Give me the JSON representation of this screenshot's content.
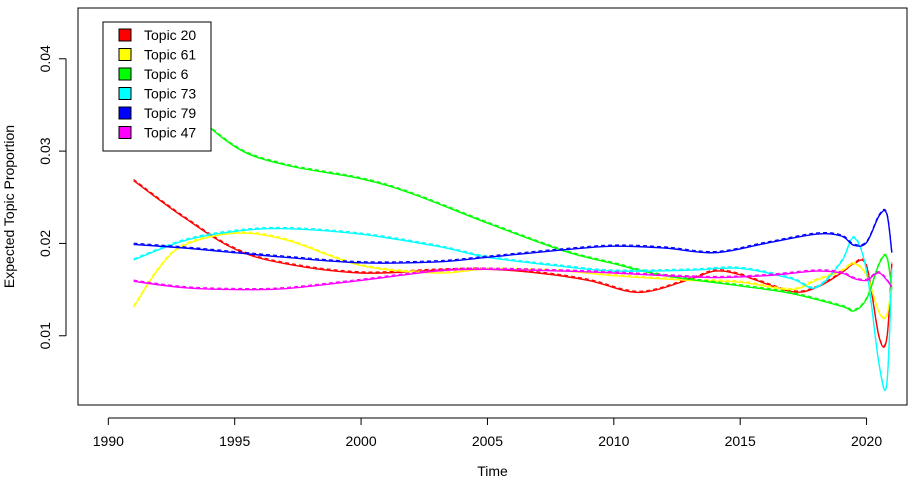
{
  "chart_data": {
    "type": "line",
    "xlabel": "Time",
    "ylabel": "Expected Topic Proportion",
    "xlim": [
      1988.8,
      2021.6
    ],
    "ylim": [
      0.0025,
      0.0455
    ],
    "xticks": [
      1990,
      1995,
      2000,
      2005,
      2010,
      2015,
      2020
    ],
    "xtick_labels": [
      "1990",
      "1995",
      "2000",
      "2005",
      "2010",
      "2015",
      "2020"
    ],
    "yticks": [
      0.01,
      0.02,
      0.03,
      0.04
    ],
    "ytick_labels": [
      "0.01",
      "0.02",
      "0.03",
      "0.04"
    ],
    "legend_position": "top-left",
    "series": [
      {
        "name": "Topic 20",
        "color": "#ff0000",
        "x": [
          1991,
          1993,
          1995,
          1997,
          2000,
          2003,
          2005,
          2007,
          2009,
          2011,
          2013,
          2014,
          2015,
          2017,
          2018,
          2019,
          2019.5,
          2020,
          2020.5,
          2020.8,
          2021
        ],
        "y": [
          0.0268,
          0.0228,
          0.0194,
          0.0178,
          0.0168,
          0.0171,
          0.0172,
          0.0168,
          0.016,
          0.0147,
          0.0161,
          0.017,
          0.0166,
          0.0148,
          0.0152,
          0.0168,
          0.0178,
          0.0175,
          0.0098,
          0.0097,
          0.0178
        ]
      },
      {
        "name": "Topic 61",
        "color": "#ffff00",
        "x": [
          1991,
          1992,
          1993,
          1995,
          1997,
          2000,
          2003,
          2005,
          2008,
          2010,
          2013,
          2015,
          2017,
          2018,
          2019,
          2019.5,
          2020,
          2020.5,
          2020.8,
          2021
        ],
        "y": [
          0.0131,
          0.0173,
          0.0198,
          0.0211,
          0.0204,
          0.0176,
          0.0168,
          0.0172,
          0.017,
          0.0165,
          0.016,
          0.0158,
          0.015,
          0.016,
          0.017,
          0.0178,
          0.0165,
          0.0125,
          0.0122,
          0.0158
        ]
      },
      {
        "name": "Topic 6",
        "color": "#00ff00",
        "x": [
          1991,
          1993,
          1995,
          1997,
          2000,
          2002,
          2005,
          2008,
          2010,
          2012,
          2015,
          2017,
          2019,
          2019.5,
          2020,
          2020.5,
          2020.8,
          2021
        ],
        "y": [
          0.0438,
          0.0355,
          0.0305,
          0.0285,
          0.027,
          0.0254,
          0.0222,
          0.0192,
          0.0178,
          0.0165,
          0.0154,
          0.0146,
          0.0132,
          0.0127,
          0.014,
          0.0178,
          0.0185,
          0.015
        ]
      },
      {
        "name": "Topic 73",
        "color": "#00ffff",
        "x": [
          1991,
          1993,
          1995,
          1997,
          2000,
          2003,
          2005,
          2008,
          2010,
          2013,
          2015,
          2017,
          2018,
          2019,
          2019.5,
          2020,
          2020.5,
          2020.8,
          2021
        ],
        "y": [
          0.0182,
          0.0203,
          0.0213,
          0.0216,
          0.021,
          0.0197,
          0.0185,
          0.0175,
          0.017,
          0.0171,
          0.0173,
          0.0162,
          0.0152,
          0.018,
          0.0206,
          0.017,
          0.0068,
          0.0048,
          0.0172
        ]
      },
      {
        "name": "Topic 79",
        "color": "#0000ff",
        "x": [
          1991,
          1993,
          1995,
          1997,
          2000,
          2003,
          2005,
          2008,
          2010,
          2012,
          2014,
          2016,
          2018,
          2019,
          2019.5,
          2020,
          2020.5,
          2020.8,
          2021
        ],
        "y": [
          0.0199,
          0.0195,
          0.019,
          0.0185,
          0.0179,
          0.018,
          0.0185,
          0.0193,
          0.0197,
          0.0195,
          0.019,
          0.02,
          0.021,
          0.0208,
          0.0198,
          0.0201,
          0.023,
          0.0232,
          0.019
        ]
      },
      {
        "name": "Topic 47",
        "color": "#ff00ff",
        "x": [
          1991,
          1993,
          1995,
          1997,
          2000,
          2003,
          2005,
          2008,
          2010,
          2012,
          2014,
          2016,
          2018,
          2019,
          2019.5,
          2020,
          2020.5,
          2021
        ],
        "y": [
          0.0159,
          0.0152,
          0.015,
          0.0151,
          0.016,
          0.017,
          0.0172,
          0.017,
          0.0168,
          0.0165,
          0.0163,
          0.0165,
          0.017,
          0.0168,
          0.0162,
          0.016,
          0.0168,
          0.0153
        ]
      }
    ]
  }
}
